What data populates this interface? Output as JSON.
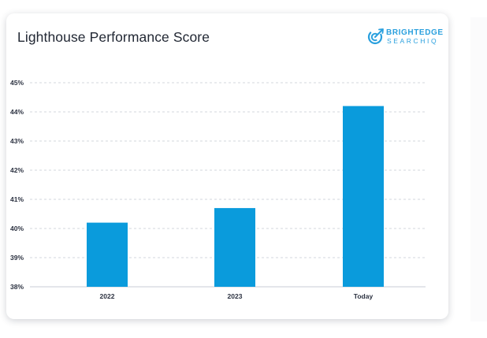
{
  "brand": {
    "line1": "BRIGHTEDGE",
    "line2": "SEARCHIQ",
    "icon": "brightedge-logo-icon",
    "color": "#2aa0de"
  },
  "colors": {
    "bar": "#0a9bdc",
    "grid": "#d3d7dd",
    "axis": "#c9ced6"
  },
  "chart_data": {
    "type": "bar",
    "title": "Lighthouse Performance Score",
    "xlabel": "",
    "ylabel": "",
    "categories": [
      "2022",
      "2023",
      "Today"
    ],
    "values": [
      40.2,
      40.7,
      44.2
    ],
    "ylim": [
      38,
      45
    ],
    "yticks": [
      45,
      44,
      43,
      42,
      41,
      40,
      39,
      38
    ],
    "ytick_labels": [
      "45%",
      "44%",
      "43%",
      "42%",
      "41%",
      "40%",
      "39%",
      "38%"
    ],
    "grid": true,
    "legend": "none"
  }
}
